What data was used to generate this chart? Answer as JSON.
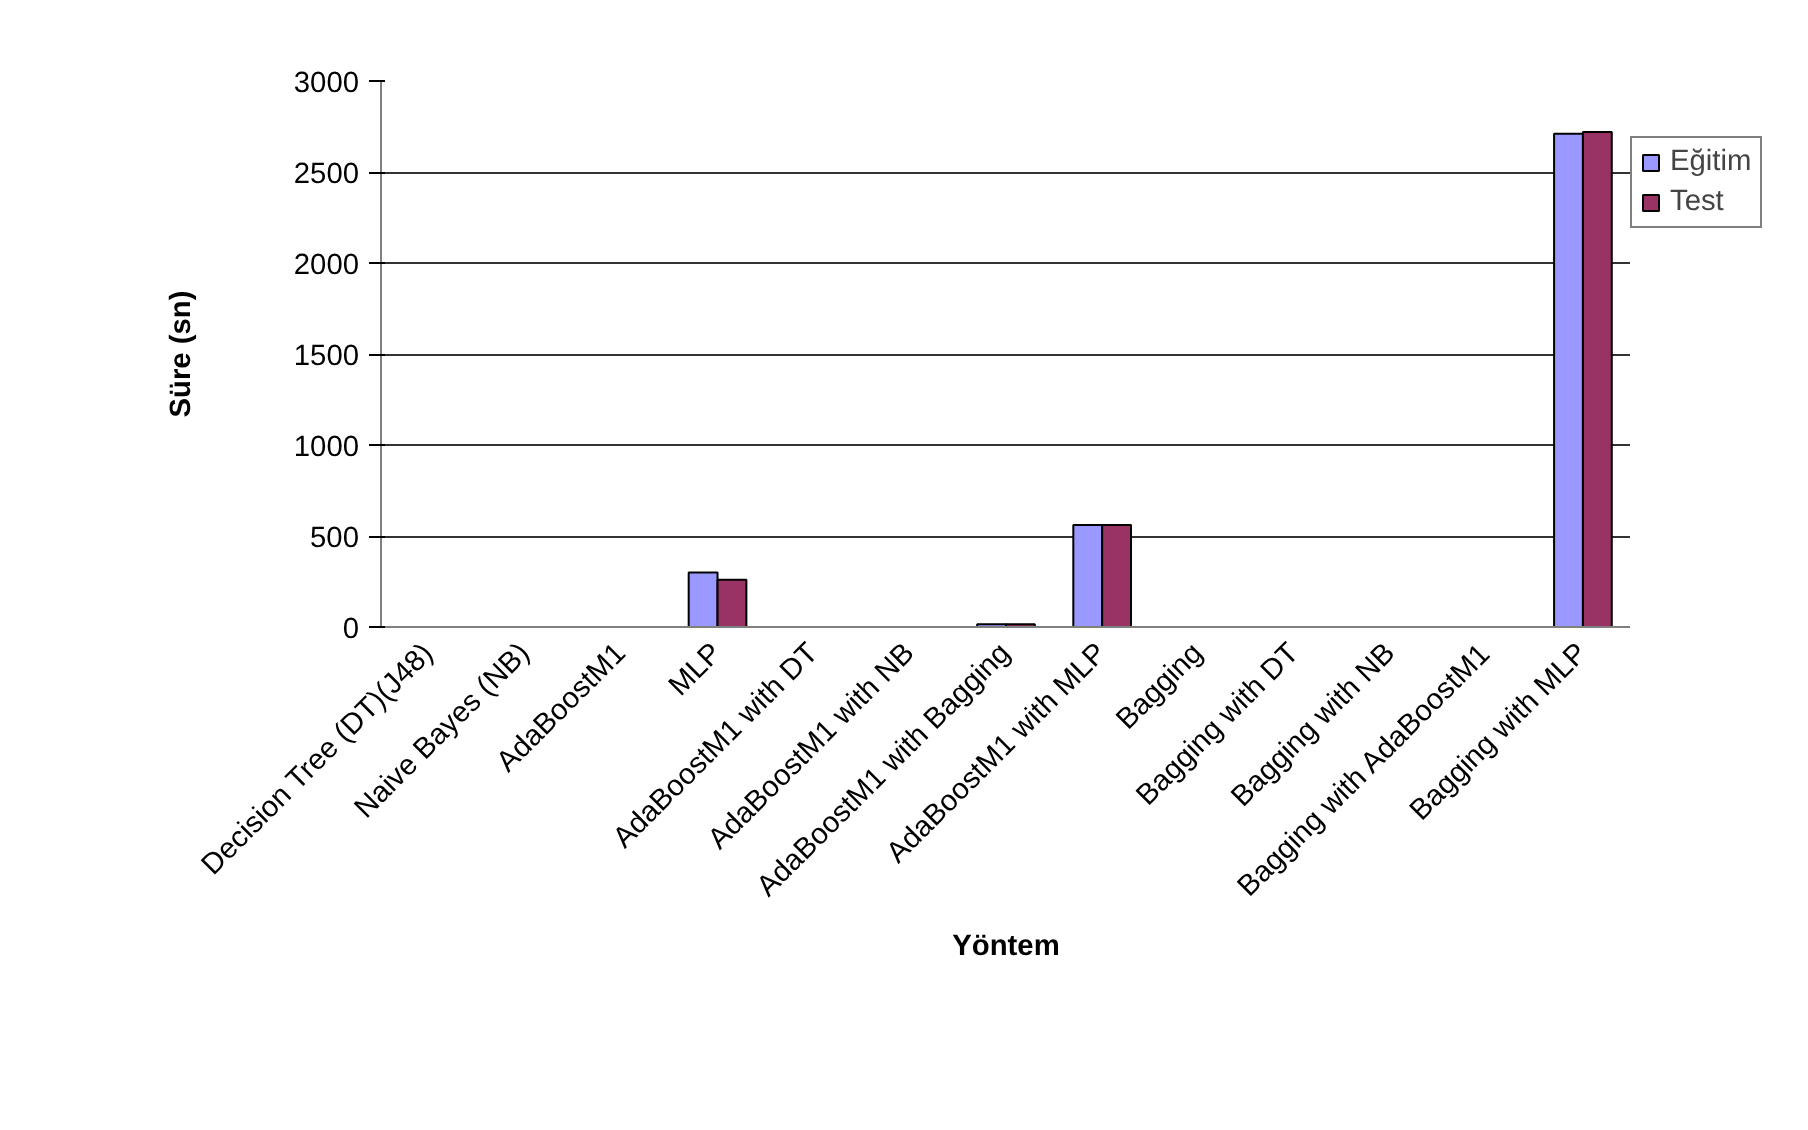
{
  "chart_data": {
    "type": "bar",
    "xlabel": "Yöntem",
    "ylabel": "Süre (sn)",
    "categories": [
      "Decision Tree (DT)(J48)",
      "Naive Bayes (NB)",
      "AdaBoostM1",
      "MLP",
      "AdaBoostM1 with DT",
      "AdaBoostM1 with NB",
      "AdaBoostM1 with Bagging",
      "AdaBoostM1 with MLP",
      "Bagging",
      "Bagging with DT",
      "Bagging with NB",
      "Bagging with AdaBoostM1",
      "Bagging with MLP"
    ],
    "series": [
      {
        "name": "Eğitim",
        "color": "#9999ff",
        "values": [
          0,
          0,
          0,
          300,
          0,
          0,
          15,
          560,
          0,
          0,
          0,
          0,
          2710
        ]
      },
      {
        "name": "Test",
        "color": "#993366",
        "values": [
          0,
          0,
          0,
          260,
          0,
          0,
          15,
          560,
          0,
          0,
          0,
          0,
          2720
        ]
      }
    ],
    "ylim": [
      0,
      3000
    ],
    "yticks": [
      0,
      500,
      1000,
      1500,
      2000,
      2500,
      3000
    ],
    "grid": "y",
    "legend": "right"
  }
}
